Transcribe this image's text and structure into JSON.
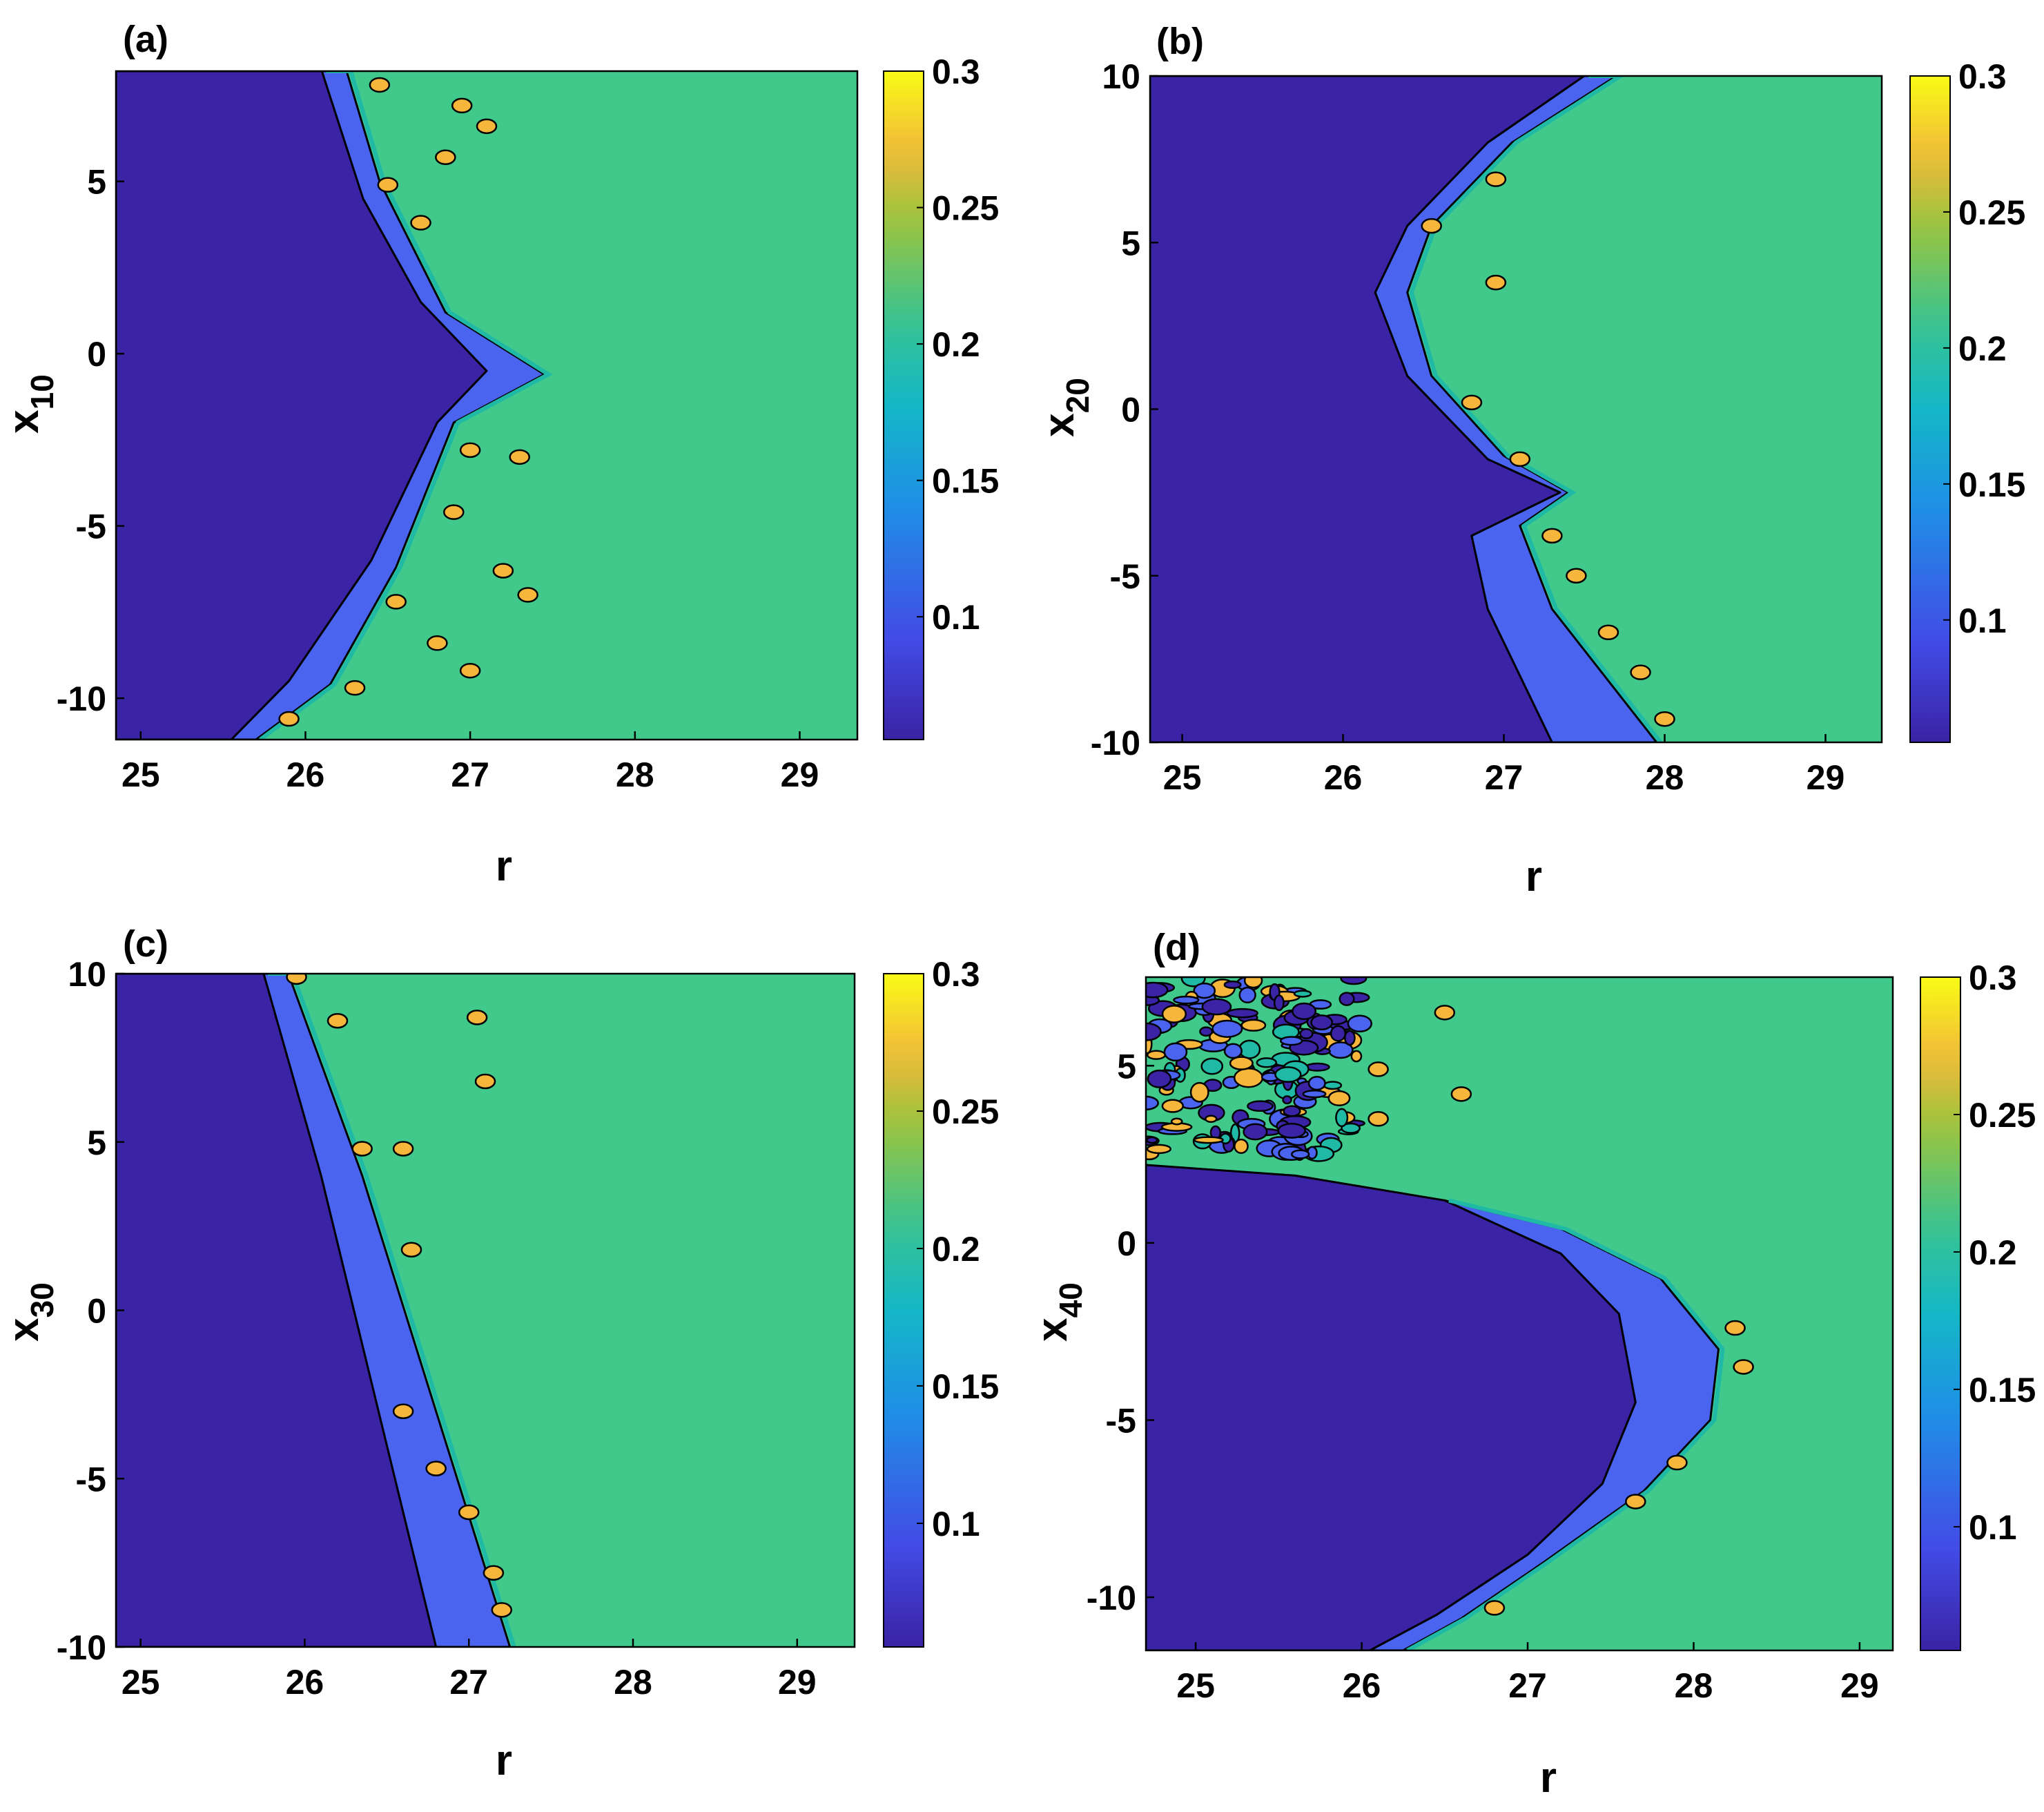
{
  "figure": {
    "panel_count": 4,
    "colormap": "parula",
    "colors": {
      "level_low": "#3a23a4",
      "level_mid": "#4a64f0",
      "level_green": "#40c98b",
      "level_teal": "#1fb9a6",
      "level_orange": "#f6b63b",
      "level_yellow": "#f9fb16",
      "contour_line": "#000000"
    }
  },
  "chart_data": [
    {
      "type": "contour",
      "panel_label": "(a)",
      "title": "",
      "xlabel": "r",
      "ylabel_base": "x",
      "ylabel_sub": "10",
      "xlim": [
        24.85,
        29.35
      ],
      "ylim": [
        -11.2,
        8.2
      ],
      "xticks": [
        25,
        26,
        27,
        28,
        29
      ],
      "xtick_labels": [
        "25",
        "26",
        "27",
        "28",
        "29"
      ],
      "yticks": [
        5,
        0,
        -5,
        -10
      ],
      "ytick_labels": [
        "5",
        "0",
        "-5",
        "-10"
      ],
      "colorbar": {
        "range": [
          0.055,
          0.3
        ],
        "ticks": [
          0.3,
          0.25,
          0.2,
          0.15,
          0.1
        ],
        "tick_labels": [
          "0.3",
          "0.25",
          "0.2",
          "0.15",
          "0.1"
        ]
      },
      "regions": [
        {
          "level": 0.06,
          "name": "dark region",
          "boundary": [
            [
              24.85,
              8.2
            ],
            [
              26.1,
              8.2
            ],
            [
              26.35,
              4.5
            ],
            [
              26.7,
              1.5
            ],
            [
              27.1,
              -0.5
            ],
            [
              26.8,
              -2.0
            ],
            [
              26.4,
              -6.0
            ],
            [
              25.9,
              -9.5
            ],
            [
              25.55,
              -11.2
            ],
            [
              24.85,
              -11.2
            ]
          ]
        },
        {
          "level": 0.09,
          "name": "blue band",
          "boundary": [
            [
              26.1,
              8.2
            ],
            [
              26.25,
              8.2
            ],
            [
              26.45,
              5.0
            ],
            [
              26.85,
              1.2
            ],
            [
              27.45,
              -0.6
            ],
            [
              26.9,
              -2.0
            ],
            [
              26.55,
              -6.2
            ],
            [
              26.15,
              -9.6
            ],
            [
              25.7,
              -11.2
            ],
            [
              25.55,
              -11.2
            ],
            [
              25.9,
              -9.5
            ],
            [
              26.4,
              -6.0
            ],
            [
              26.8,
              -2.0
            ],
            [
              27.1,
              -0.5
            ],
            [
              26.7,
              1.5
            ],
            [
              26.35,
              4.5
            ]
          ]
        }
      ],
      "background_level": 0.2,
      "spots": [
        {
          "r": 26.45,
          "x": 7.8,
          "level": 0.27
        },
        {
          "r": 26.95,
          "x": 7.2,
          "level": 0.27
        },
        {
          "r": 27.1,
          "x": 6.6,
          "level": 0.27
        },
        {
          "r": 26.85,
          "x": 5.7,
          "level": 0.27
        },
        {
          "r": 26.5,
          "x": 4.9,
          "level": 0.27
        },
        {
          "r": 26.7,
          "x": 3.8,
          "level": 0.27
        },
        {
          "r": 27.0,
          "x": -2.8,
          "level": 0.27
        },
        {
          "r": 27.3,
          "x": -3.0,
          "level": 0.27
        },
        {
          "r": 26.9,
          "x": -4.6,
          "level": 0.27
        },
        {
          "r": 27.2,
          "x": -6.3,
          "level": 0.27
        },
        {
          "r": 26.55,
          "x": -7.2,
          "level": 0.27
        },
        {
          "r": 26.8,
          "x": -8.4,
          "level": 0.27
        },
        {
          "r": 27.0,
          "x": -9.2,
          "level": 0.27
        },
        {
          "r": 26.3,
          "x": -9.7,
          "level": 0.27
        },
        {
          "r": 25.9,
          "x": -10.6,
          "level": 0.27
        },
        {
          "r": 27.35,
          "x": -7.0,
          "level": 0.27
        }
      ]
    },
    {
      "type": "contour",
      "panel_label": "(b)",
      "title": "",
      "xlabel": "r",
      "ylabel_base": "x",
      "ylabel_sub": "20",
      "xlim": [
        24.8,
        29.35
      ],
      "ylim": [
        -10,
        10
      ],
      "xticks": [
        25,
        26,
        27,
        28,
        29
      ],
      "xtick_labels": [
        "25",
        "26",
        "27",
        "28",
        "29"
      ],
      "yticks": [
        10,
        5,
        0,
        -5,
        -10
      ],
      "ytick_labels": [
        "10",
        "5",
        "0",
        "-5",
        "-10"
      ],
      "colorbar": {
        "range": [
          0.055,
          0.3
        ],
        "ticks": [
          0.3,
          0.25,
          0.2,
          0.15,
          0.1
        ],
        "tick_labels": [
          "0.3",
          "0.25",
          "0.2",
          "0.15",
          "0.1"
        ]
      },
      "regions": [
        {
          "level": 0.06,
          "name": "dark region",
          "boundary": [
            [
              24.8,
              10
            ],
            [
              27.5,
              10
            ],
            [
              26.9,
              8.0
            ],
            [
              26.4,
              5.5
            ],
            [
              26.2,
              3.5
            ],
            [
              26.4,
              1.0
            ],
            [
              26.9,
              -1.5
            ],
            [
              27.35,
              -2.5
            ],
            [
              26.8,
              -3.8
            ],
            [
              26.9,
              -6.0
            ],
            [
              27.3,
              -10
            ],
            [
              24.8,
              -10
            ]
          ]
        },
        {
          "level": 0.09,
          "name": "blue band",
          "boundary": [
            [
              27.5,
              10
            ],
            [
              27.7,
              10
            ],
            [
              27.05,
              8.0
            ],
            [
              26.55,
              5.5
            ],
            [
              26.4,
              3.5
            ],
            [
              26.55,
              1.0
            ],
            [
              27.0,
              -1.4
            ],
            [
              27.4,
              -2.5
            ],
            [
              27.1,
              -3.5
            ],
            [
              27.3,
              -6.0
            ],
            [
              27.95,
              -10
            ],
            [
              27.3,
              -10
            ],
            [
              26.9,
              -6.0
            ],
            [
              26.8,
              -3.8
            ],
            [
              27.35,
              -2.5
            ],
            [
              26.9,
              -1.5
            ],
            [
              26.4,
              1.0
            ],
            [
              26.2,
              3.5
            ],
            [
              26.4,
              5.5
            ],
            [
              26.9,
              8.0
            ]
          ]
        }
      ],
      "background_level": 0.2,
      "spots": [
        {
          "r": 26.95,
          "x": 6.9,
          "level": 0.27
        },
        {
          "r": 26.55,
          "x": 5.5,
          "level": 0.27
        },
        {
          "r": 26.95,
          "x": 3.8,
          "level": 0.27
        },
        {
          "r": 26.8,
          "x": 0.2,
          "level": 0.27
        },
        {
          "r": 27.1,
          "x": -1.5,
          "level": 0.27
        },
        {
          "r": 27.3,
          "x": -3.8,
          "level": 0.27
        },
        {
          "r": 27.45,
          "x": -5.0,
          "level": 0.27
        },
        {
          "r": 27.65,
          "x": -6.7,
          "level": 0.27
        },
        {
          "r": 27.85,
          "x": -7.9,
          "level": 0.27
        },
        {
          "r": 28.0,
          "x": -9.3,
          "level": 0.27
        }
      ]
    },
    {
      "type": "contour",
      "panel_label": "(c)",
      "title": "",
      "xlabel": "r",
      "ylabel_base": "x",
      "ylabel_sub": "30",
      "xlim": [
        24.85,
        29.35
      ],
      "ylim": [
        -10,
        10
      ],
      "xticks": [
        25,
        26,
        27,
        28,
        29
      ],
      "xtick_labels": [
        "25",
        "26",
        "27",
        "28",
        "29"
      ],
      "yticks": [
        10,
        5,
        0,
        -5,
        -10
      ],
      "ytick_labels": [
        "10",
        "5",
        "0",
        "-5",
        "-10"
      ],
      "colorbar": {
        "range": [
          0.055,
          0.3
        ],
        "ticks": [
          0.3,
          0.25,
          0.2,
          0.15,
          0.1
        ],
        "tick_labels": [
          "0.3",
          "0.25",
          "0.2",
          "0.15",
          "0.1"
        ]
      },
      "regions": [
        {
          "level": 0.06,
          "name": "dark region",
          "boundary": [
            [
              24.85,
              10
            ],
            [
              25.75,
              10
            ],
            [
              26.1,
              4.0
            ],
            [
              26.45,
              -3.0
            ],
            [
              26.8,
              -10
            ],
            [
              24.85,
              -10
            ]
          ]
        },
        {
          "level": 0.09,
          "name": "blue band",
          "boundary": [
            [
              25.75,
              10
            ],
            [
              25.9,
              10
            ],
            [
              26.35,
              4.0
            ],
            [
              26.8,
              -3.0
            ],
            [
              27.25,
              -10
            ],
            [
              26.8,
              -10
            ],
            [
              26.45,
              -3.0
            ],
            [
              26.1,
              4.0
            ]
          ]
        }
      ],
      "background_level": 0.2,
      "spots": [
        {
          "r": 25.95,
          "x": 9.9,
          "level": 0.27
        },
        {
          "r": 26.2,
          "x": 8.6,
          "level": 0.27
        },
        {
          "r": 27.05,
          "x": 8.7,
          "level": 0.27
        },
        {
          "r": 27.1,
          "x": 6.8,
          "level": 0.27
        },
        {
          "r": 26.35,
          "x": 4.8,
          "level": 0.27
        },
        {
          "r": 26.6,
          "x": 4.8,
          "level": 0.27
        },
        {
          "r": 26.65,
          "x": 1.8,
          "level": 0.27
        },
        {
          "r": 26.6,
          "x": -3.0,
          "level": 0.27
        },
        {
          "r": 26.8,
          "x": -4.7,
          "level": 0.27
        },
        {
          "r": 27.0,
          "x": -6.0,
          "level": 0.27
        },
        {
          "r": 27.15,
          "x": -7.8,
          "level": 0.27
        },
        {
          "r": 27.2,
          "x": -8.9,
          "level": 0.27
        }
      ]
    },
    {
      "type": "contour",
      "panel_label": "(d)",
      "title": "",
      "xlabel": "r",
      "ylabel_base": "x",
      "ylabel_sub": "40",
      "xlim": [
        24.7,
        29.2
      ],
      "ylim": [
        -11.5,
        7.5
      ],
      "xticks": [
        25,
        26,
        27,
        28,
        29
      ],
      "xtick_labels": [
        "25",
        "26",
        "27",
        "28",
        "29"
      ],
      "yticks": [
        5,
        0,
        -5,
        -10
      ],
      "ytick_labels": [
        "5",
        "0",
        "-5",
        "-10"
      ],
      "colorbar": {
        "range": [
          0.055,
          0.3
        ],
        "ticks": [
          0.3,
          0.25,
          0.2,
          0.15,
          0.1
        ],
        "tick_labels": [
          "0.3",
          "0.25",
          "0.2",
          "0.15",
          "0.1"
        ]
      },
      "regions": [
        {
          "level": 0.06,
          "name": "dark region",
          "boundary": [
            [
              24.7,
              2.2
            ],
            [
              25.6,
              1.9
            ],
            [
              26.5,
              1.2
            ],
            [
              27.2,
              -0.3
            ],
            [
              27.55,
              -2.0
            ],
            [
              27.65,
              -4.5
            ],
            [
              27.45,
              -6.8
            ],
            [
              27.0,
              -8.8
            ],
            [
              26.45,
              -10.5
            ],
            [
              26.05,
              -11.5
            ],
            [
              24.7,
              -11.5
            ]
          ]
        },
        {
          "level": 0.09,
          "name": "blue band",
          "boundary": [
            [
              26.5,
              1.2
            ],
            [
              27.2,
              0.4
            ],
            [
              27.8,
              -1.0
            ],
            [
              28.15,
              -3.0
            ],
            [
              28.1,
              -5.0
            ],
            [
              27.7,
              -7.0
            ],
            [
              27.1,
              -9.0
            ],
            [
              26.6,
              -10.6
            ],
            [
              26.25,
              -11.5
            ],
            [
              26.05,
              -11.5
            ],
            [
              26.45,
              -10.5
            ],
            [
              27.0,
              -8.8
            ],
            [
              27.45,
              -6.8
            ],
            [
              27.65,
              -4.5
            ],
            [
              27.55,
              -2.0
            ],
            [
              27.2,
              -0.3
            ]
          ]
        }
      ],
      "background_level": 0.2,
      "noisy_band": {
        "r_from": 24.7,
        "r_to": 26.2,
        "x_from": 2.5,
        "x_to": 7.5
      },
      "spots": [
        {
          "r": 26.5,
          "x": 6.5,
          "level": 0.27
        },
        {
          "r": 26.1,
          "x": 4.9,
          "level": 0.27
        },
        {
          "r": 26.6,
          "x": 4.2,
          "level": 0.27
        },
        {
          "r": 26.1,
          "x": 3.5,
          "level": 0.27
        },
        {
          "r": 28.25,
          "x": -2.4,
          "level": 0.27
        },
        {
          "r": 28.3,
          "x": -3.5,
          "level": 0.27
        },
        {
          "r": 27.9,
          "x": -6.2,
          "level": 0.27
        },
        {
          "r": 27.65,
          "x": -7.3,
          "level": 0.27
        },
        {
          "r": 26.8,
          "x": -10.3,
          "level": 0.27
        }
      ]
    }
  ]
}
